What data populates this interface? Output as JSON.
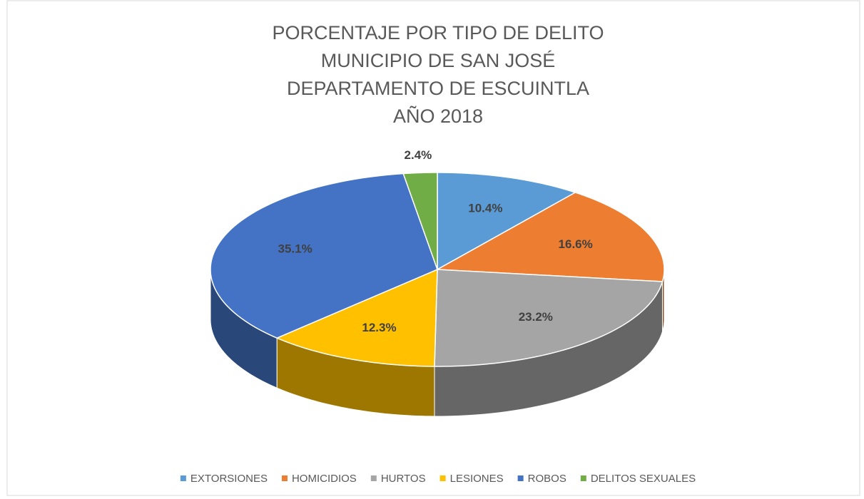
{
  "chart_data": {
    "type": "pie3d",
    "title": [
      "PORCENTAJE POR TIPO DE DELITO",
      "MUNICIPIO DE SAN JOSÉ",
      "DEPARTAMENTO DE ESCUINTLA",
      "AÑO 2018"
    ],
    "categories": [
      "EXTORSIONES",
      "HOMICIDIOS",
      "HURTOS",
      "LESIONES",
      "ROBOS",
      "DELITOS SEXUALES"
    ],
    "values": [
      10.4,
      16.6,
      23.2,
      12.3,
      35.1,
      2.4
    ],
    "value_labels": [
      "10.4%",
      "16.6%",
      "23.2%",
      "12.3%",
      "35.1%",
      "2.4%"
    ],
    "colors": [
      "#5b9bd5",
      "#ed7d31",
      "#a5a5a5",
      "#ffc000",
      "#4472c4",
      "#70ad47"
    ],
    "legend": "bottom"
  }
}
